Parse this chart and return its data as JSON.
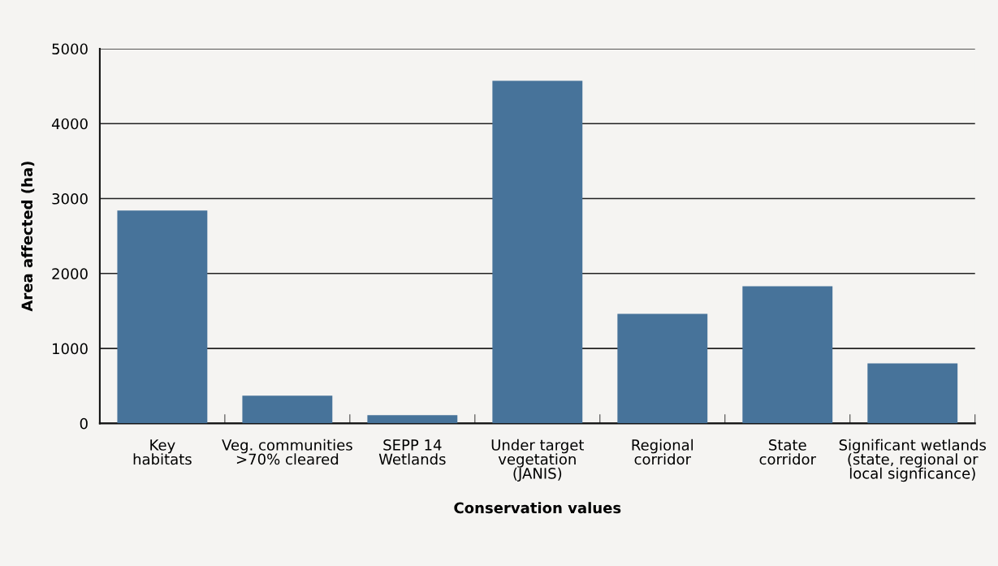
{
  "chart_data": {
    "type": "bar",
    "xlabel": "Conservation values",
    "ylabel": "Area affected (ha)",
    "categories": [
      "Key\nhabitats",
      "Veg. communities\n>70% cleared",
      "SEPP 14\nWetlands",
      "Under target\nvegetation\n(JANIS)",
      "Regional\ncorridor",
      "State\ncorridor",
      "Significant wetlands\n(state, regional or\nlocal signficance)"
    ],
    "values": [
      2840,
      370,
      110,
      4570,
      1460,
      1830,
      800
    ],
    "color": "#47739a",
    "ylim": [
      0,
      5000
    ],
    "yticks": [
      0,
      1000,
      2000,
      3000,
      4000,
      5000
    ],
    "grid": "y",
    "legend": false
  }
}
